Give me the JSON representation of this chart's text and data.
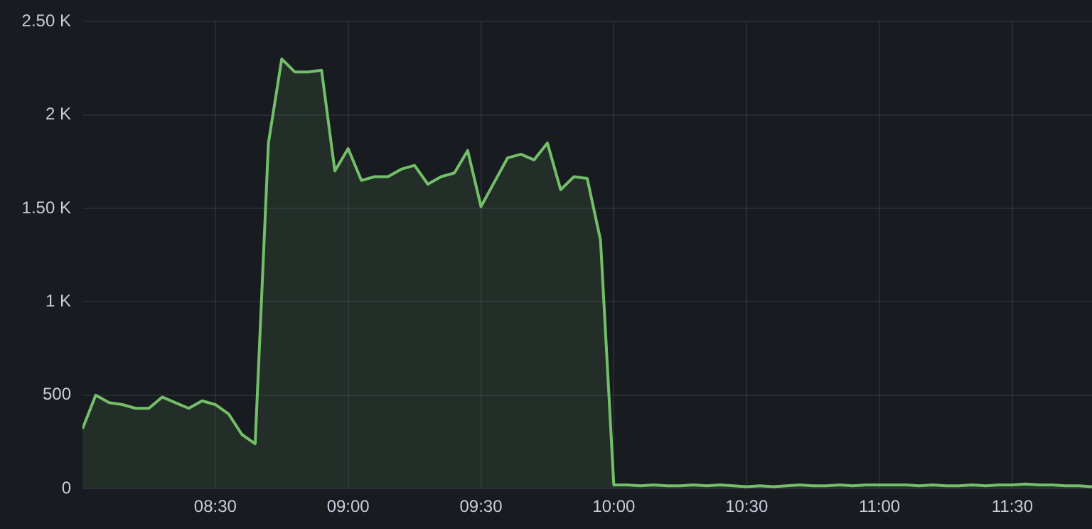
{
  "chart_data": {
    "type": "area",
    "marker": "none",
    "line_style": "solid",
    "grid": true,
    "xlim": [
      8,
      11.8
    ],
    "xticks": [
      {
        "value": 8.5,
        "label": "08:30"
      },
      {
        "value": 9,
        "label": "09:00"
      },
      {
        "value": 9.5,
        "label": "09:30"
      },
      {
        "value": 10,
        "label": "10:00"
      },
      {
        "value": 10.5,
        "label": "10:30"
      },
      {
        "value": 11,
        "label": "11:00"
      },
      {
        "value": 11.5,
        "label": "11:30"
      }
    ],
    "ylim": [
      0,
      2500
    ],
    "yticks": [
      0,
      500,
      {
        "value": 1000,
        "label": "1 K"
      },
      {
        "value": 1500,
        "label": "1.50 K"
      },
      {
        "value": 2000,
        "label": "2 K"
      },
      {
        "value": 2500,
        "label": "2.50 K"
      }
    ],
    "x": [
      8,
      8.05,
      8.1,
      8.15,
      8.2,
      8.25,
      8.3,
      8.35,
      8.4,
      8.45,
      8.5,
      8.55,
      8.6,
      8.65,
      8.7,
      8.75,
      8.8,
      8.85,
      8.9,
      8.95,
      9,
      9.05,
      9.1,
      9.15,
      9.2,
      9.25,
      9.3,
      9.35,
      9.4,
      9.45,
      9.5,
      9.55,
      9.6,
      9.65,
      9.7,
      9.75,
      9.8,
      9.85,
      9.9,
      9.95,
      10,
      10.05,
      10.1,
      10.15,
      10.2,
      10.25,
      10.3,
      10.35,
      10.4,
      10.45,
      10.5,
      10.55,
      10.6,
      10.65,
      10.7,
      10.75,
      10.8,
      10.85,
      10.9,
      10.95,
      11,
      11.05,
      11.1,
      11.15,
      11.2,
      11.25,
      11.3,
      11.35,
      11.4,
      11.45,
      11.5,
      11.55,
      11.6,
      11.65,
      11.7,
      11.75,
      11.8
    ],
    "series": [
      {
        "color": "#73bf69",
        "values": [
          320,
          500,
          460,
          450,
          430,
          430,
          490,
          460,
          430,
          470,
          450,
          400,
          290,
          240,
          1850,
          2300,
          2230,
          2230,
          2240,
          1700,
          1820,
          1650,
          1670,
          1670,
          1710,
          1730,
          1630,
          1670,
          1690,
          1810,
          1510,
          1640,
          1770,
          1790,
          1760,
          1850,
          1600,
          1670,
          1660,
          1330,
          20,
          20,
          15,
          20,
          15,
          15,
          20,
          15,
          20,
          15,
          10,
          15,
          10,
          15,
          20,
          15,
          15,
          20,
          15,
          20,
          20,
          20,
          20,
          15,
          20,
          15,
          15,
          20,
          15,
          20,
          20,
          25,
          20,
          20,
          15,
          15,
          10
        ]
      }
    ]
  }
}
